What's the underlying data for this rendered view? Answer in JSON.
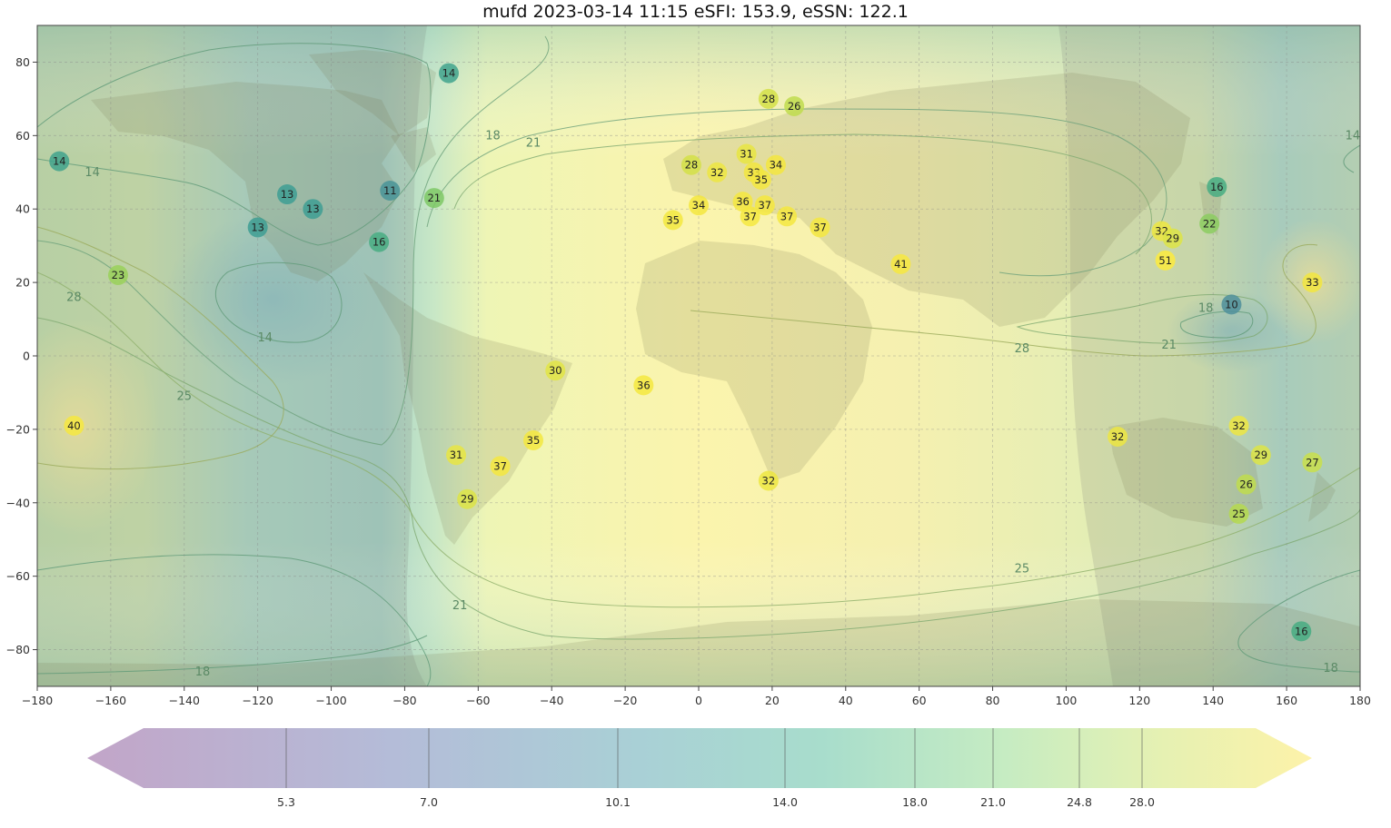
{
  "title": "mufd 2023-03-14 11:15 eSFI: 153.9, eSSN: 122.1",
  "x_ticks": [
    -180,
    -160,
    -140,
    -120,
    -100,
    -80,
    -60,
    -40,
    -20,
    0,
    20,
    40,
    60,
    80,
    100,
    120,
    140,
    160,
    180
  ],
  "y_ticks": [
    80,
    60,
    40,
    20,
    0,
    -20,
    -40,
    -60,
    -80
  ],
  "colorbar": {
    "ticks": [
      5.3,
      7.0,
      10.1,
      14.0,
      18.0,
      21.0,
      24.8,
      28.0
    ],
    "tick_labels": [
      "5.3",
      "7.0",
      "10.1",
      "14.0",
      "18.0",
      "21.0",
      "24.8",
      "28.0"
    ]
  },
  "contour_labels": [
    {
      "text": "14",
      "lon": -165,
      "lat": 50
    },
    {
      "text": "18",
      "lon": -56,
      "lat": 60
    },
    {
      "text": "21",
      "lon": -45,
      "lat": 58
    },
    {
      "text": "14",
      "lon": -118,
      "lat": 5
    },
    {
      "text": "28",
      "lon": -170,
      "lat": 16
    },
    {
      "text": "25",
      "lon": -140,
      "lat": -11
    },
    {
      "text": "21",
      "lon": -65,
      "lat": -68
    },
    {
      "text": "18",
      "lon": -135,
      "lat": -86
    },
    {
      "text": "25",
      "lon": 88,
      "lat": -58
    },
    {
      "text": "28",
      "lon": 88,
      "lat": 2
    },
    {
      "text": "21",
      "lon": 128,
      "lat": 3
    },
    {
      "text": "18",
      "lon": 138,
      "lat": 13
    },
    {
      "text": "18",
      "lon": 172,
      "lat": -85
    },
    {
      "text": "14",
      "lon": 178,
      "lat": 60
    }
  ],
  "stations": [
    {
      "v": 14,
      "lon": -174,
      "lat": 53
    },
    {
      "v": 14,
      "lon": -68,
      "lat": 77
    },
    {
      "v": 13,
      "lon": -112,
      "lat": 44
    },
    {
      "v": 13,
      "lon": -105,
      "lat": 40
    },
    {
      "v": 13,
      "lon": -120,
      "lat": 35
    },
    {
      "v": 11,
      "lon": -84,
      "lat": 45
    },
    {
      "v": 16,
      "lon": -87,
      "lat": 31
    },
    {
      "v": 21,
      "lon": -72,
      "lat": 43
    },
    {
      "v": 23,
      "lon": -158,
      "lat": 22
    },
    {
      "v": 40,
      "lon": -170,
      "lat": -19
    },
    {
      "v": 30,
      "lon": -39,
      "lat": -4
    },
    {
      "v": 36,
      "lon": -15,
      "lat": -8
    },
    {
      "v": 35,
      "lon": -45,
      "lat": -23
    },
    {
      "v": 31,
      "lon": -66,
      "lat": -27
    },
    {
      "v": 37,
      "lon": -54,
      "lat": -30
    },
    {
      "v": 29,
      "lon": -63,
      "lat": -39
    },
    {
      "v": 28,
      "lon": 19,
      "lat": 70
    },
    {
      "v": 26,
      "lon": 26,
      "lat": 68
    },
    {
      "v": 28,
      "lon": -2,
      "lat": 52
    },
    {
      "v": 32,
      "lon": 5,
      "lat": 50
    },
    {
      "v": 31,
      "lon": 13,
      "lat": 55
    },
    {
      "v": 33,
      "lon": 15,
      "lat": 50
    },
    {
      "v": 34,
      "lon": 21,
      "lat": 52
    },
    {
      "v": 35,
      "lon": 17,
      "lat": 48
    },
    {
      "v": 34,
      "lon": 0,
      "lat": 41
    },
    {
      "v": 35,
      "lon": -7,
      "lat": 37
    },
    {
      "v": 36,
      "lon": 12,
      "lat": 42
    },
    {
      "v": 37,
      "lon": 18,
      "lat": 41
    },
    {
      "v": 37,
      "lon": 14,
      "lat": 38
    },
    {
      "v": 37,
      "lon": 24,
      "lat": 38
    },
    {
      "v": 37,
      "lon": 33,
      "lat": 35
    },
    {
      "v": 41,
      "lon": 55,
      "lat": 25
    },
    {
      "v": 32,
      "lon": 19,
      "lat": -34
    },
    {
      "v": 32,
      "lon": 126,
      "lat": 34
    },
    {
      "v": 29,
      "lon": 129,
      "lat": 32
    },
    {
      "v": 51,
      "lon": 127,
      "lat": 26
    },
    {
      "v": 16,
      "lon": 141,
      "lat": 46
    },
    {
      "v": 22,
      "lon": 139,
      "lat": 36
    },
    {
      "v": 10,
      "lon": 145,
      "lat": 14
    },
    {
      "v": 33,
      "lon": 167,
      "lat": 20
    },
    {
      "v": 32,
      "lon": 114,
      "lat": -22
    },
    {
      "v": 32,
      "lon": 147,
      "lat": -19
    },
    {
      "v": 29,
      "lon": 153,
      "lat": -27
    },
    {
      "v": 27,
      "lon": 167,
      "lat": -29
    },
    {
      "v": 26,
      "lon": 149,
      "lat": -35
    },
    {
      "v": 25,
      "lon": 147,
      "lat": -43
    },
    {
      "v": 16,
      "lon": 164,
      "lat": -75
    }
  ]
}
